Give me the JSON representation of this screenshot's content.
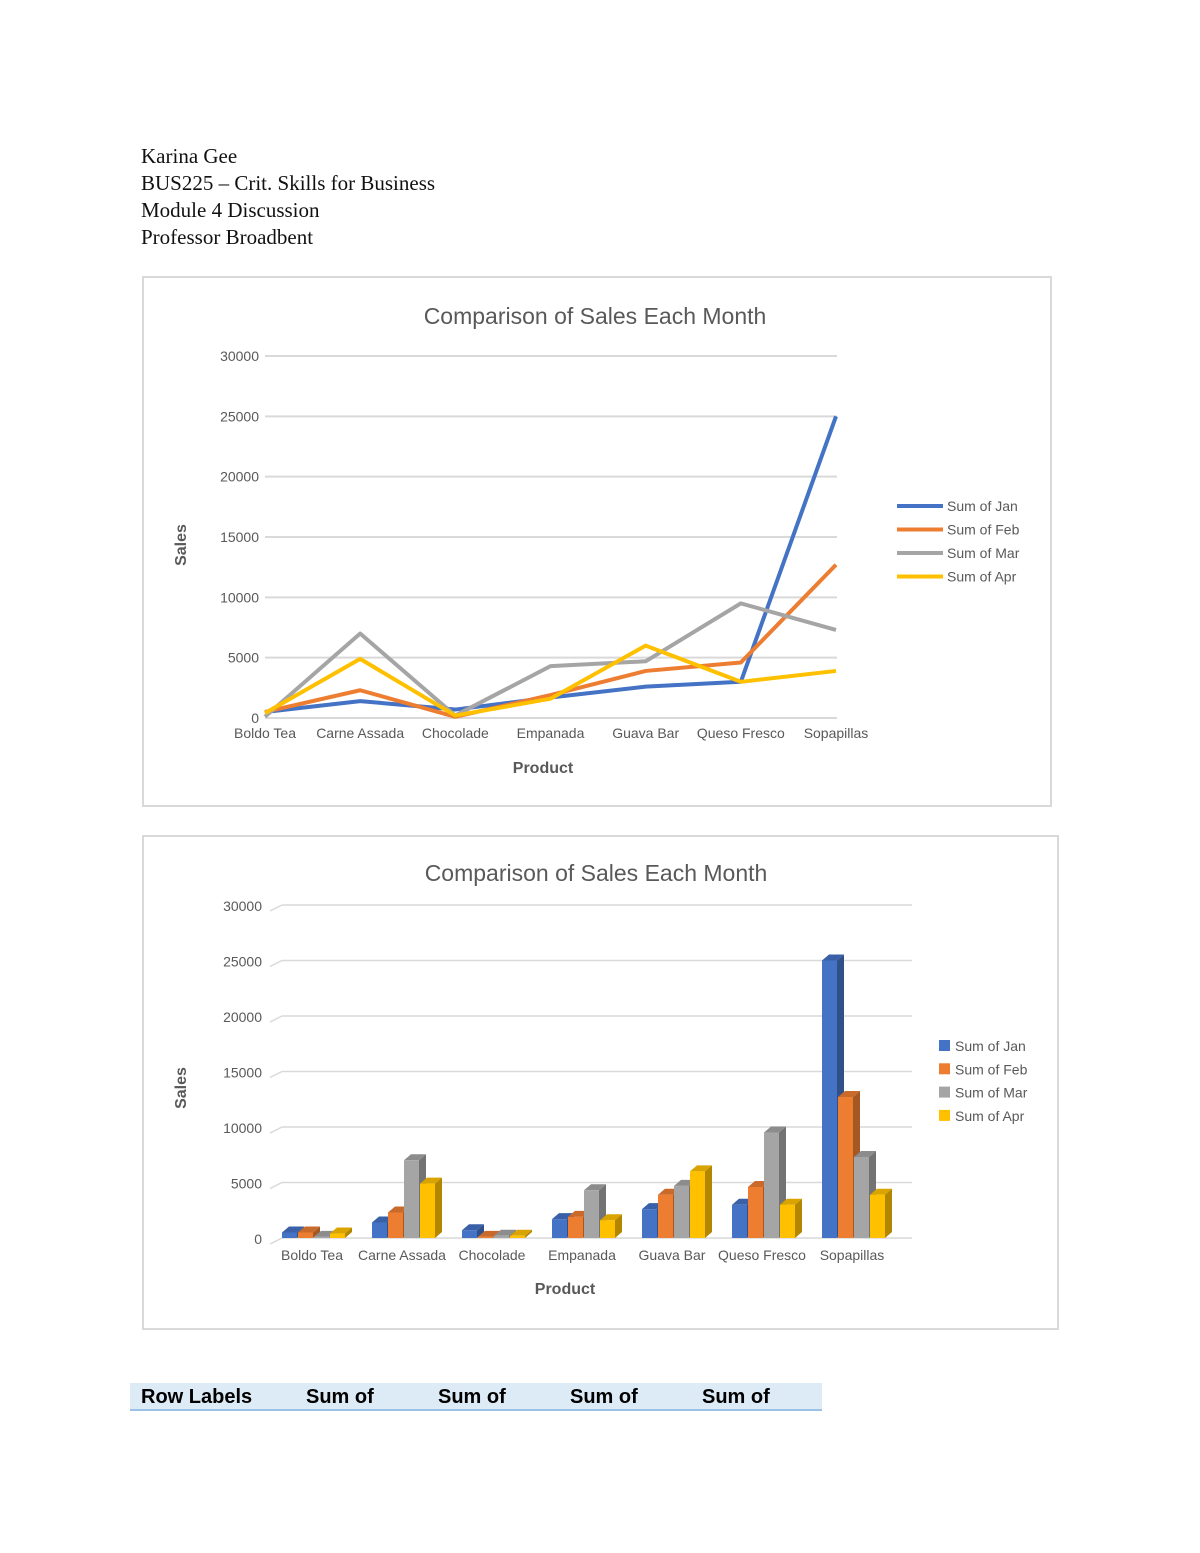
{
  "header": {
    "author": "Karina Gee",
    "course": "BUS225 – Crit. Skills for Business",
    "assignment": "Module 4 Discussion",
    "professor": "Professor Broadbent"
  },
  "chart_data": [
    {
      "type": "line",
      "title": "Comparison of Sales Each Month",
      "xlabel": "Product",
      "ylabel": "Sales",
      "ylim": [
        0,
        30000
      ],
      "yticks": [
        0,
        5000,
        10000,
        15000,
        20000,
        25000,
        30000
      ],
      "grid": true,
      "legend": "right",
      "categories": [
        "Boldo Tea",
        "Carne Assada",
        "Chocolade",
        "Empanada",
        "Guava Bar",
        "Queso Fresco",
        "Sopapillas"
      ],
      "series": [
        {
          "name": "Sum of Jan",
          "color": "#4472c4",
          "values": [
            500,
            1400,
            700,
            1700,
            2600,
            3000,
            25000
          ]
        },
        {
          "name": "Sum of Feb",
          "color": "#ed7d31",
          "values": [
            500,
            2300,
            100,
            1900,
            3900,
            4600,
            12700
          ]
        },
        {
          "name": "Sum of Mar",
          "color": "#a5a5a5",
          "values": [
            100,
            7000,
            200,
            4300,
            4700,
            9500,
            7300
          ]
        },
        {
          "name": "Sum of Apr",
          "color": "#ffc000",
          "values": [
            400,
            4900,
            200,
            1600,
            6000,
            3000,
            3900
          ]
        }
      ]
    },
    {
      "type": "bar",
      "title": "Comparison of Sales Each Month",
      "xlabel": "Product",
      "ylabel": "Sales",
      "ylim": [
        0,
        30000
      ],
      "yticks": [
        0,
        5000,
        10000,
        15000,
        20000,
        25000,
        30000
      ],
      "grid": true,
      "legend": "right",
      "style": "3d-clustered-column",
      "categories": [
        "Boldo Tea",
        "Carne Assada",
        "Chocolade",
        "Empanada",
        "Guava Bar",
        "Queso Fresco",
        "Sopapillas"
      ],
      "series": [
        {
          "name": "Sum of Jan",
          "color": "#4472c4",
          "values": [
            500,
            1400,
            700,
            1700,
            2600,
            3000,
            25000
          ]
        },
        {
          "name": "Sum of Feb",
          "color": "#ed7d31",
          "values": [
            500,
            2300,
            100,
            1900,
            3900,
            4600,
            12700
          ]
        },
        {
          "name": "Sum of Mar",
          "color": "#a5a5a5",
          "values": [
            100,
            7000,
            200,
            4300,
            4700,
            9500,
            7300
          ]
        },
        {
          "name": "Sum of Apr",
          "color": "#ffc000",
          "values": [
            400,
            4900,
            200,
            1600,
            6000,
            3000,
            3900
          ]
        }
      ]
    }
  ],
  "table": {
    "headers": [
      "Row Labels",
      "Sum of",
      "Sum of",
      "Sum of",
      "Sum of"
    ]
  }
}
